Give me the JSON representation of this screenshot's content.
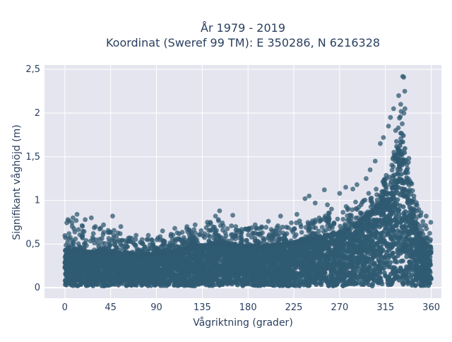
{
  "chart_data": {
    "type": "scatter",
    "title_line1": "År 1979 - 2019",
    "title_line2": "Koordinat (Sweref 99 TM): E 350286, N 6216328",
    "xlabel": "Vågriktning (grader)",
    "ylabel": "Signifikant våghöjd (m)",
    "xlim": [
      -20,
      370
    ],
    "ylim": [
      -0.12,
      2.55
    ],
    "x_ticks": [
      0,
      45,
      90,
      135,
      180,
      225,
      270,
      315,
      360
    ],
    "x_tick_labels": [
      "0",
      "45",
      "90",
      "135",
      "180",
      "225",
      "270",
      "315",
      "360"
    ],
    "y_ticks": [
      0,
      0.5,
      1,
      1.5,
      2,
      2.5
    ],
    "y_tick_labels": [
      "0",
      "0,5",
      "1",
      "1,5",
      "2",
      "2,5"
    ],
    "grid": true,
    "point_color": "#2f5a72",
    "background_color": "#e5e5ef",
    "upper_envelope": {
      "x": [
        0,
        10,
        20,
        30,
        45,
        60,
        75,
        90,
        105,
        120,
        135,
        150,
        165,
        180,
        195,
        210,
        225,
        240,
        255,
        270,
        285,
        300,
        310,
        318,
        322,
        326,
        330,
        333,
        336,
        340,
        345,
        350,
        355,
        360
      ],
      "ymax": [
        0.75,
        0.8,
        0.72,
        0.7,
        0.68,
        0.6,
        0.55,
        0.58,
        0.65,
        0.68,
        0.72,
        0.8,
        0.72,
        0.7,
        0.7,
        0.72,
        0.78,
        0.8,
        0.85,
        0.9,
        0.98,
        1.1,
        1.2,
        1.35,
        1.5,
        1.7,
        2.1,
        2.25,
        1.9,
        1.4,
        1.0,
        0.85,
        0.8,
        0.75
      ],
      "ydense": [
        0.42,
        0.42,
        0.4,
        0.4,
        0.4,
        0.38,
        0.36,
        0.38,
        0.4,
        0.45,
        0.48,
        0.5,
        0.48,
        0.46,
        0.46,
        0.48,
        0.5,
        0.55,
        0.58,
        0.62,
        0.7,
        0.85,
        0.95,
        1.1,
        1.25,
        1.45,
        1.7,
        1.75,
        1.4,
        1.0,
        0.7,
        0.55,
        0.5,
        0.45
      ]
    },
    "points": [
      {
        "x": 332,
        "y": 2.42
      },
      {
        "x": 333,
        "y": 2.41
      },
      {
        "x": 328,
        "y": 2.2
      },
      {
        "x": 334,
        "y": 2.25
      },
      {
        "x": 330,
        "y": 2.1
      },
      {
        "x": 323,
        "y": 2.05
      },
      {
        "x": 320,
        "y": 1.95
      },
      {
        "x": 318,
        "y": 1.85
      },
      {
        "x": 313,
        "y": 1.72
      },
      {
        "x": 310,
        "y": 1.65
      },
      {
        "x": 305,
        "y": 1.45
      },
      {
        "x": 300,
        "y": 1.35
      },
      {
        "x": 296,
        "y": 1.25
      },
      {
        "x": 287,
        "y": 1.18
      },
      {
        "x": 283,
        "y": 1.13
      },
      {
        "x": 276,
        "y": 1.15
      },
      {
        "x": 270,
        "y": 1.08
      },
      {
        "x": 255,
        "y": 1.12
      },
      {
        "x": 240,
        "y": 1.05
      },
      {
        "x": 236,
        "y": 1.02
      },
      {
        "x": 246,
        "y": 0.97
      },
      {
        "x": 258,
        "y": 0.95
      },
      {
        "x": 262,
        "y": 0.9
      },
      {
        "x": 228,
        "y": 0.84
      },
      {
        "x": 212,
        "y": 0.82
      },
      {
        "x": 200,
        "y": 0.76
      },
      {
        "x": 187,
        "y": 0.72
      },
      {
        "x": 152,
        "y": 0.88
      },
      {
        "x": 165,
        "y": 0.83
      },
      {
        "x": 148,
        "y": 0.82
      },
      {
        "x": 140,
        "y": 0.75
      },
      {
        "x": 128,
        "y": 0.72
      },
      {
        "x": 120,
        "y": 0.7
      },
      {
        "x": 108,
        "y": 0.68
      },
      {
        "x": 96,
        "y": 0.65
      },
      {
        "x": 82,
        "y": 0.6
      },
      {
        "x": 70,
        "y": 0.6
      },
      {
        "x": 55,
        "y": 0.7
      },
      {
        "x": 47,
        "y": 0.82
      },
      {
        "x": 38,
        "y": 0.72
      },
      {
        "x": 30,
        "y": 0.7
      },
      {
        "x": 26,
        "y": 0.8
      },
      {
        "x": 20,
        "y": 0.78
      },
      {
        "x": 12,
        "y": 0.84
      },
      {
        "x": 8,
        "y": 0.8
      },
      {
        "x": 3,
        "y": 0.78
      },
      {
        "x": 355,
        "y": 0.82
      },
      {
        "x": 350,
        "y": 0.86
      },
      {
        "x": 345,
        "y": 0.95
      },
      {
        "x": 340,
        "y": 1.2
      },
      {
        "x": 338,
        "y": 1.48
      },
      {
        "x": 343,
        "y": 1.05
      },
      {
        "x": 325,
        "y": 1.8
      },
      {
        "x": 327,
        "y": 1.6
      }
    ]
  }
}
